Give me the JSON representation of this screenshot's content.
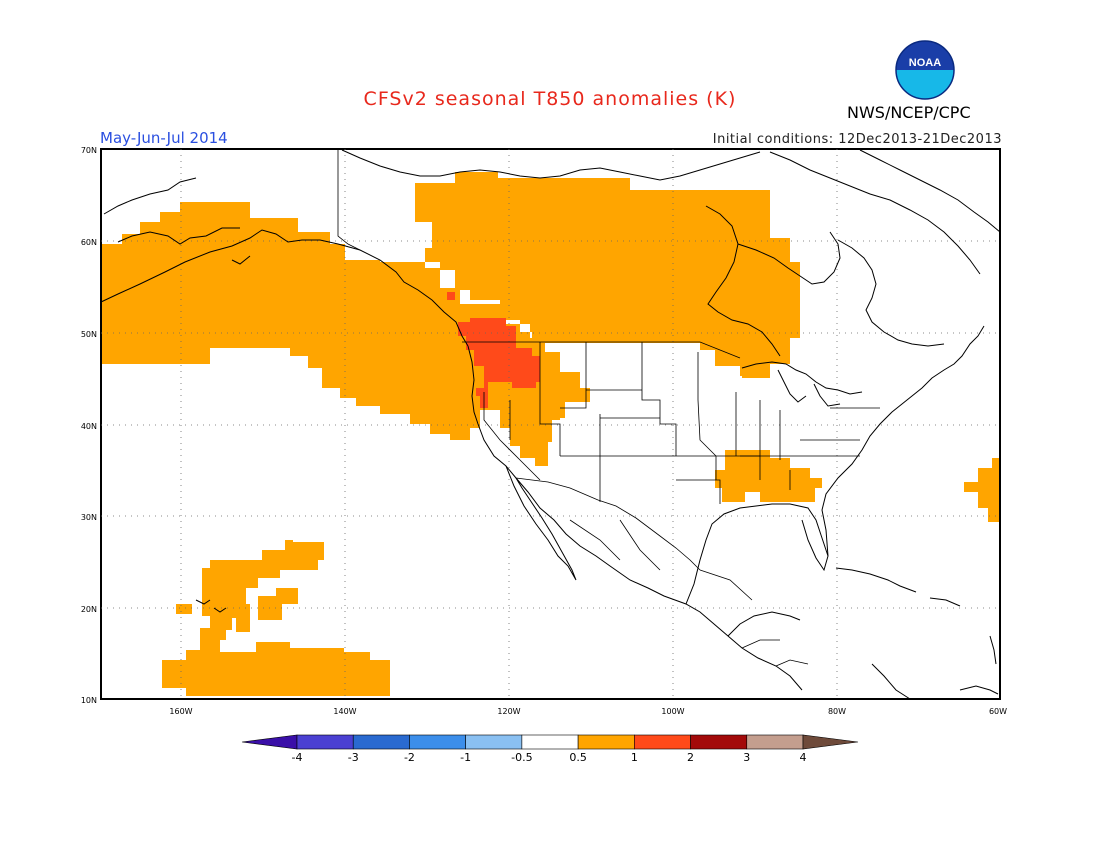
{
  "header": {
    "title": "CFSv2 seasonal T850 anomalies (K)",
    "period": "May-Jun-Jul 2014",
    "initial_conditions": "Initial conditions: 12Dec2013-21Dec2013",
    "organization": "NWS/NCEP/CPC",
    "logo_text": "NOAA",
    "logo_icon": "noaa-logo-icon"
  },
  "axes": {
    "lat_labels": [
      "70N",
      "60N",
      "50N",
      "40N",
      "30N",
      "20N",
      "10N"
    ],
    "lon_labels": [
      "160W",
      "140W",
      "120W",
      "100W",
      "80W",
      "60W"
    ]
  },
  "colorbar": {
    "labels": [
      "-4",
      "-3",
      "-2",
      "-1",
      "-0.5",
      "0.5",
      "1",
      "2",
      "3",
      "4"
    ],
    "colors": [
      "#3a0fa8",
      "#4b40d2",
      "#2a6ad0",
      "#3c8eea",
      "#8ac0f2",
      "#ffffff",
      "#ffa500",
      "#ff4a1a",
      "#a30a0a",
      "#c49e8e",
      "#6e4a3a"
    ]
  },
  "anomaly_colors": {
    "weak_warm": "#ffa500",
    "moderate_warm": "#ff4a1a"
  }
}
